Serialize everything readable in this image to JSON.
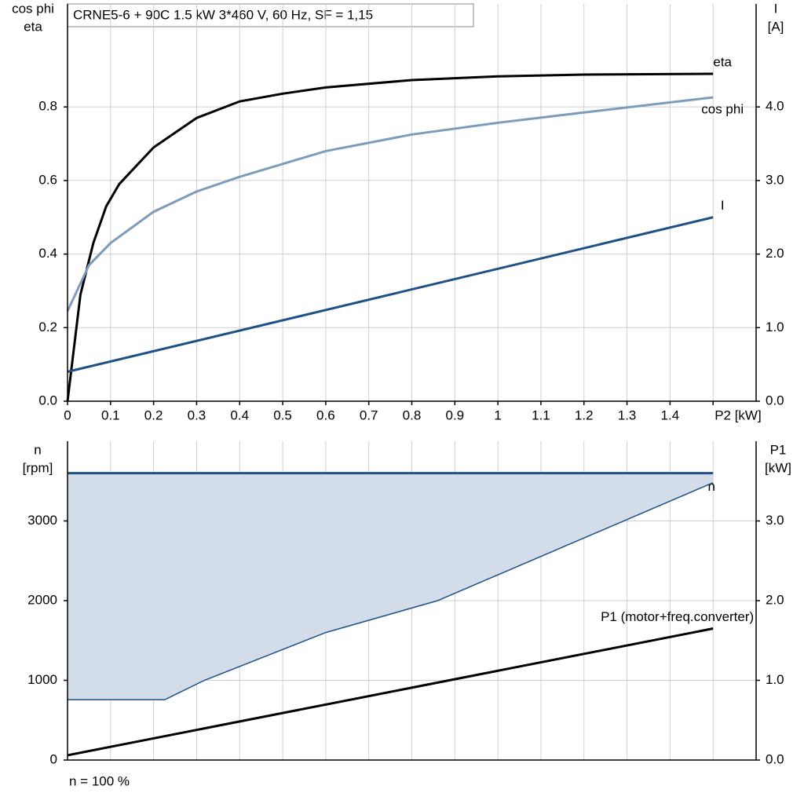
{
  "chart_data": [
    {
      "type": "line",
      "title": "CRNE5-6 + 90C   1.5 kW   3*460 V, 60 Hz, SF = 1,15",
      "y_label": [
        "cos phi",
        "eta"
      ],
      "y2_label": [
        "I",
        "[A]"
      ],
      "xlim": [
        0,
        1.6
      ],
      "xticks": [
        0,
        0.1,
        0.2,
        0.3,
        0.4,
        0.5,
        0.6,
        0.7,
        0.8,
        0.9,
        1.0,
        1.1,
        1.2,
        1.3,
        1.4,
        {
          "value": 1.5,
          "label": "P2 [kW]"
        }
      ],
      "ylim": [
        0,
        1.08
      ],
      "yticks": [
        {
          "value": 0,
          "label": "0.0"
        },
        0.2,
        0.4,
        0.6,
        0.8
      ],
      "y2lim": [
        0,
        5.4
      ],
      "y2ticks": [
        {
          "value": 0,
          "label": "0.0"
        },
        {
          "value": 1,
          "label": "1.0"
        },
        {
          "value": 2,
          "label": "2.0"
        },
        {
          "value": 3,
          "label": "3.0"
        },
        {
          "value": 4,
          "label": "4.0"
        }
      ],
      "grid": true,
      "series": [
        {
          "name": "eta",
          "color": "#000000",
          "x": [
            0,
            0.03,
            0.06,
            0.09,
            0.12,
            0.2,
            0.3,
            0.4,
            0.5,
            0.6,
            0.8,
            1.0,
            1.2,
            1.5
          ],
          "values": [
            0,
            0.29,
            0.43,
            0.53,
            0.59,
            0.69,
            0.77,
            0.815,
            0.836,
            0.853,
            0.873,
            0.883,
            0.888,
            0.89
          ]
        },
        {
          "name": "cos phi",
          "color": "#7c9cbc",
          "x": [
            0,
            0.05,
            0.1,
            0.2,
            0.3,
            0.4,
            0.5,
            0.6,
            0.8,
            1.0,
            1.2,
            1.5
          ],
          "values": [
            0.245,
            0.37,
            0.43,
            0.515,
            0.57,
            0.61,
            0.645,
            0.68,
            0.725,
            0.757,
            0.785,
            0.826
          ]
        },
        {
          "name": "I",
          "color": "#1f5086",
          "axis": "y2",
          "x": [
            0,
            1.5
          ],
          "values": [
            0.4,
            2.5
          ]
        }
      ]
    },
    {
      "type": "line",
      "y_label": [
        "n",
        "[rpm]"
      ],
      "y2_label": [
        "P1",
        "[kW]"
      ],
      "note": "n = 100 %",
      "xlim": [
        0,
        1.6
      ],
      "ylim": [
        0,
        4000
      ],
      "yticks": [
        0,
        1000,
        2000,
        3000
      ],
      "y2lim": [
        0,
        4
      ],
      "y2ticks": [
        {
          "value": 0,
          "label": "0.0"
        },
        {
          "value": 1,
          "label": "1.0"
        },
        {
          "value": 2,
          "label": "2.0"
        },
        {
          "value": 3,
          "label": "3.0"
        }
      ],
      "grid": true,
      "fill": "#d2dde9",
      "series": [
        {
          "name": "n",
          "color": "#1f5086",
          "x": [
            0,
            1.5
          ],
          "values": [
            3600,
            3600
          ]
        },
        {
          "color": "#1f5086",
          "x": [
            0,
            0.226,
            0.318,
            0.6,
            0.86,
            1.5
          ],
          "values": [
            757,
            757,
            1000,
            1600,
            2000,
            3480
          ]
        },
        {
          "name": "P1 (motor+freq.converter)",
          "color": "#000000",
          "axis": "y2",
          "x": [
            0,
            1.5
          ],
          "values": [
            0.06,
            1.65
          ]
        }
      ]
    }
  ]
}
